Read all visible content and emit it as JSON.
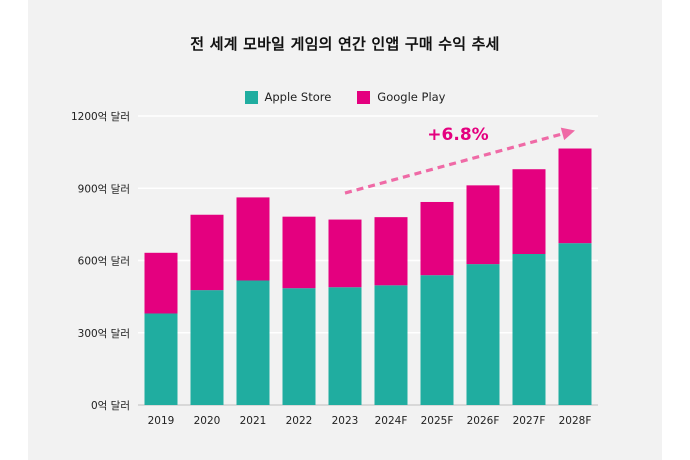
{
  "chart_data": {
    "type": "bar",
    "stacked": true,
    "title": "전 세계 모바일 게임의 연간 인앱 구매 수익 추세",
    "categories": [
      "2019",
      "2020",
      "2021",
      "2022",
      "2023",
      "2024F",
      "2025F",
      "2026F",
      "2027F",
      "2028F"
    ],
    "series": [
      {
        "name": "Apple Store",
        "color": "#20ada0",
        "values": [
          380,
          477,
          517,
          485,
          489,
          497,
          539,
          585,
          627,
          672
        ]
      },
      {
        "name": "Google Play",
        "color": "#e4007f",
        "values": [
          252,
          313,
          345,
          297,
          281,
          283,
          304,
          327,
          352,
          393
        ]
      }
    ],
    "ylim": [
      0,
      1200
    ],
    "yticks": [
      0,
      300,
      600,
      900,
      1200
    ],
    "ytick_labels": [
      "0억 달러",
      "300억 달러",
      "600억 달러",
      "900억 달러",
      "1200억 달러"
    ],
    "grid": true,
    "legend": "top-center",
    "annotation": {
      "text": "+6.8%",
      "color": "#e4007f",
      "arrow_color": "#ef6aa6",
      "arrow_from": [
        "2023",
        880
      ],
      "arrow_to": [
        "2028F",
        1140
      ]
    }
  }
}
